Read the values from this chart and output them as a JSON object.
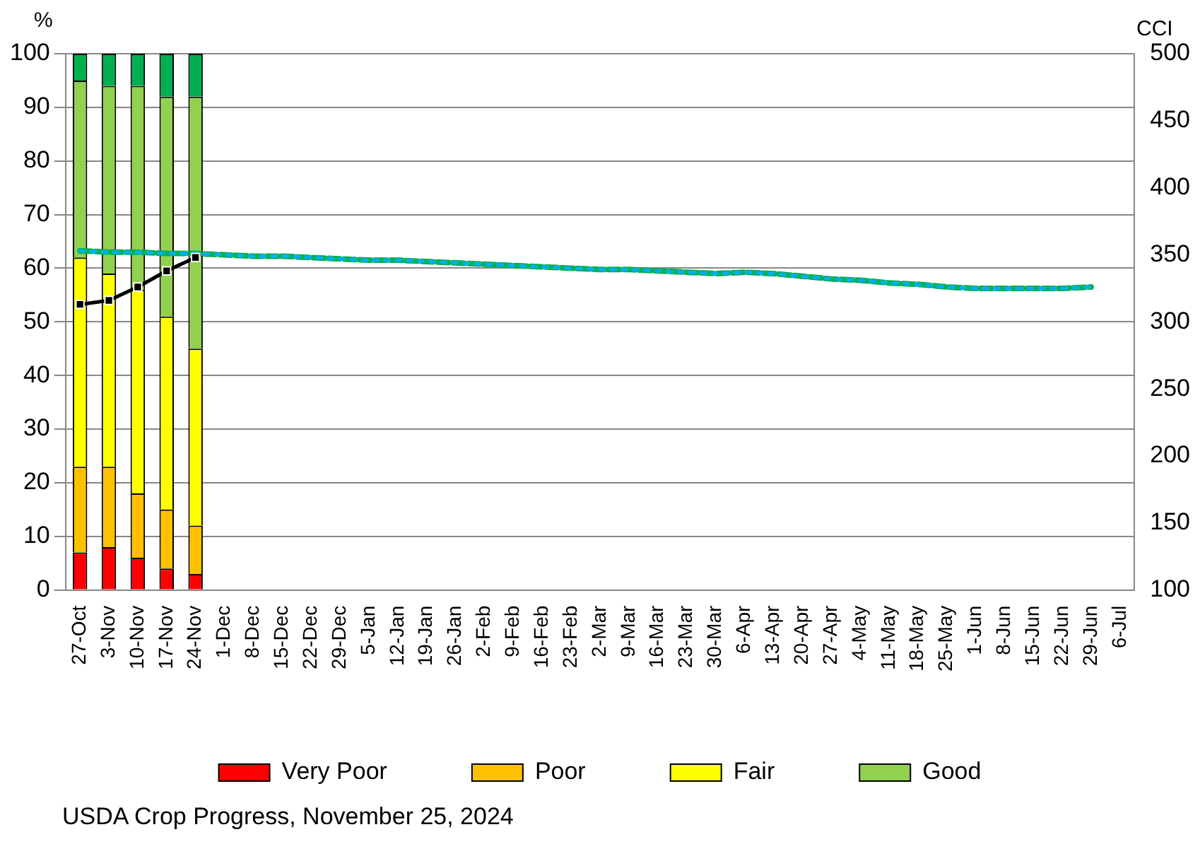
{
  "chart_data": {
    "type": "bar",
    "stacked": true,
    "ylabel": "%",
    "y2label": "CCI",
    "categories": [
      "27-Oct",
      "3-Nov",
      "10-Nov",
      "17-Nov",
      "24-Nov",
      "1-Dec",
      "8-Dec",
      "15-Dec",
      "22-Dec",
      "29-Dec",
      "5-Jan",
      "12-Jan",
      "19-Jan",
      "26-Jan",
      "2-Feb",
      "9-Feb",
      "16-Feb",
      "23-Feb",
      "2-Mar",
      "9-Mar",
      "16-Mar",
      "23-Mar",
      "30-Mar",
      "6-Apr",
      "13-Apr",
      "20-Apr",
      "27-Apr",
      "4-May",
      "11-May",
      "18-May",
      "25-May",
      "1-Jun",
      "8-Jun",
      "15-Jun",
      "22-Jun",
      "29-Jun",
      "6-Jul"
    ],
    "ylim": [
      0,
      100
    ],
    "yticks": [
      0,
      10,
      20,
      30,
      40,
      50,
      60,
      70,
      80,
      90,
      100
    ],
    "y2lim": [
      100,
      500
    ],
    "y2ticks": [
      100,
      150,
      200,
      250,
      300,
      350,
      400,
      450,
      500
    ],
    "grid": "y",
    "legend": "bottom",
    "series": [
      {
        "name": "Very Poor",
        "color": "#ff0000",
        "values": [
          7,
          8,
          6,
          4,
          3,
          null,
          null,
          null,
          null,
          null,
          null,
          null,
          null,
          null,
          null,
          null,
          null,
          null,
          null,
          null,
          null,
          null,
          null,
          null,
          null,
          null,
          null,
          null,
          null,
          null,
          null,
          null,
          null,
          null,
          null,
          null,
          null
        ]
      },
      {
        "name": "Poor",
        "color": "#ffc000",
        "values": [
          16,
          15,
          12,
          11,
          9,
          null,
          null,
          null,
          null,
          null,
          null,
          null,
          null,
          null,
          null,
          null,
          null,
          null,
          null,
          null,
          null,
          null,
          null,
          null,
          null,
          null,
          null,
          null,
          null,
          null,
          null,
          null,
          null,
          null,
          null,
          null,
          null
        ]
      },
      {
        "name": "Fair",
        "color": "#ffff00",
        "values": [
          39,
          36,
          38,
          36,
          33,
          null,
          null,
          null,
          null,
          null,
          null,
          null,
          null,
          null,
          null,
          null,
          null,
          null,
          null,
          null,
          null,
          null,
          null,
          null,
          null,
          null,
          null,
          null,
          null,
          null,
          null,
          null,
          null,
          null,
          null,
          null,
          null
        ]
      },
      {
        "name": "Good",
        "color": "#92d050",
        "values": [
          33,
          35,
          38,
          41,
          47,
          null,
          null,
          null,
          null,
          null,
          null,
          null,
          null,
          null,
          null,
          null,
          null,
          null,
          null,
          null,
          null,
          null,
          null,
          null,
          null,
          null,
          null,
          null,
          null,
          null,
          null,
          null,
          null,
          null,
          null,
          null,
          null
        ]
      },
      {
        "color": "#00b050",
        "values": [
          5,
          6,
          6,
          8,
          8,
          null,
          null,
          null,
          null,
          null,
          null,
          null,
          null,
          null,
          null,
          null,
          null,
          null,
          null,
          null,
          null,
          null,
          null,
          null,
          null,
          null,
          null,
          null,
          null,
          null,
          null,
          null,
          null,
          null,
          null,
          null,
          null
        ]
      },
      {
        "type": "line",
        "axis": "y2",
        "color": "#00b050",
        "line_style": "dashed",
        "marker": "none",
        "values": [
          353,
          352,
          352,
          351,
          351,
          350,
          349,
          349,
          348,
          347,
          346,
          346,
          345,
          344,
          343,
          342,
          341,
          340,
          339,
          339,
          338,
          337,
          336,
          337,
          336,
          334,
          332,
          331,
          329,
          328,
          326,
          325,
          325,
          325,
          325,
          326,
          null
        ]
      },
      {
        "type": "line",
        "axis": "y2",
        "color": "#00b0f0",
        "line_style": "dotted",
        "marker": "none",
        "values": [
          353,
          352,
          352,
          351,
          351,
          350,
          349,
          349,
          348,
          347,
          346,
          346,
          345,
          344,
          343,
          342,
          341,
          340,
          339,
          339,
          338,
          337,
          336,
          337,
          336,
          334,
          332,
          331,
          329,
          328,
          326,
          325,
          325,
          325,
          325,
          326,
          null
        ]
      },
      {
        "type": "line",
        "axis": "y2",
        "color": "#000000",
        "line_style": "solid",
        "marker": "square",
        "values": [
          313,
          316,
          326,
          338,
          348,
          null,
          null,
          null,
          null,
          null,
          null,
          null,
          null,
          null,
          null,
          null,
          null,
          null,
          null,
          null,
          null,
          null,
          null,
          null,
          null,
          null,
          null,
          null,
          null,
          null,
          null,
          null,
          null,
          null,
          null,
          null,
          null
        ]
      }
    ],
    "annotations": [
      "USDA Crop Progress, November 25, 2024"
    ]
  }
}
